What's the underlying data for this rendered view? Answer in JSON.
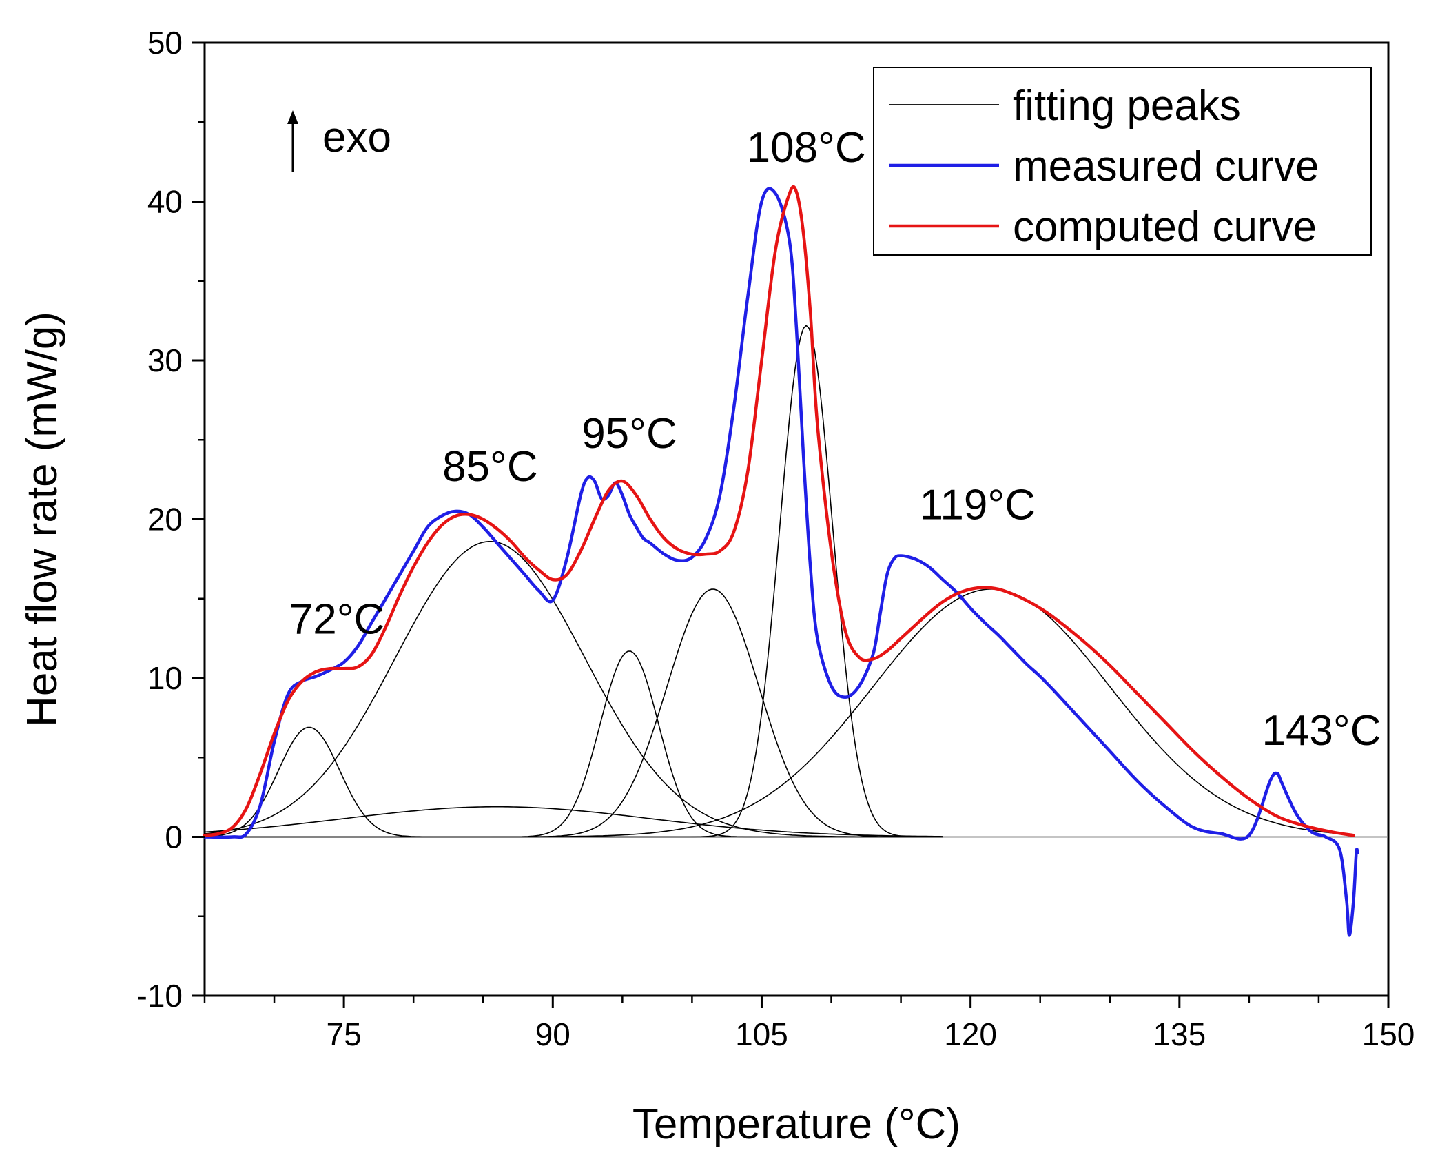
{
  "chart_data": {
    "type": "line",
    "title": "",
    "xlabel": "Temperature (°C)",
    "ylabel": "Heat flow rate (mW/g)",
    "xlim": [
      65,
      150
    ],
    "ylim": [
      -10,
      50
    ],
    "xticks": [
      75,
      90,
      105,
      120,
      135,
      150
    ],
    "yticks": [
      -10,
      0,
      10,
      20,
      30,
      40,
      50
    ],
    "xtick_labels": [
      "75",
      "90",
      "105",
      "120",
      "135",
      "150"
    ],
    "ytick_labels": [
      "-10",
      "0",
      "10",
      "20",
      "30",
      "40",
      "50"
    ],
    "legend_position": "top-right",
    "exo_label": "exo",
    "colors": {
      "measured": "#1f1fe6",
      "computed": "#e61414",
      "fitting": "#000000"
    },
    "legend": [
      {
        "label": "fitting peaks",
        "series": "fitting"
      },
      {
        "label": "measured curve",
        "series": "measured"
      },
      {
        "label": "computed curve",
        "series": "computed"
      }
    ],
    "annotations": [
      {
        "text": "72°C",
        "x": 74.5,
        "y": 12.8
      },
      {
        "text": "85°C",
        "x": 85.5,
        "y": 22.4
      },
      {
        "text": "95°C",
        "x": 95.5,
        "y": 24.5
      },
      {
        "text": "108°C",
        "x": 108.2,
        "y": 42.5
      },
      {
        "text": "119°C",
        "x": 120.5,
        "y": 20.0
      },
      {
        "text": "143°C",
        "x": 145.2,
        "y": 5.8
      }
    ],
    "series": [
      {
        "name": "measured curve",
        "key": "measured",
        "x": [
          65,
          67,
          68,
          69,
          70,
          71,
          72,
          73,
          74,
          75,
          76,
          77,
          78,
          79,
          80,
          81,
          82,
          83,
          84,
          85,
          86,
          87,
          88,
          89,
          90,
          91,
          92,
          92.5,
          93,
          93.5,
          94,
          94.5,
          95,
          95.5,
          96,
          96.5,
          97,
          98,
          99,
          100,
          101,
          102,
          103,
          104,
          105,
          106,
          107,
          107.5,
          108,
          108.5,
          109,
          110,
          111,
          112,
          113,
          113.5,
          114,
          114.5,
          115,
          116,
          117,
          118,
          119,
          120,
          121,
          122,
          123,
          124,
          125,
          126,
          128,
          130,
          132,
          134,
          136,
          138,
          140,
          141.5,
          142,
          142.3,
          142.8,
          143.5,
          144.5,
          145.5,
          146.5,
          147,
          147.2,
          147.5,
          147.7,
          147.8
        ],
        "y": [
          0,
          0,
          0.2,
          2,
          6,
          9,
          9.8,
          10.1,
          10.5,
          11,
          12,
          13.5,
          15,
          16.5,
          18,
          19.5,
          20.2,
          20.5,
          20.3,
          19.5,
          18.5,
          17.5,
          16.5,
          15.5,
          14.9,
          17.5,
          21.5,
          22.6,
          22.4,
          21.3,
          21.5,
          22.3,
          21.5,
          20.3,
          19.5,
          18.8,
          18.5,
          17.8,
          17.4,
          17.6,
          18.8,
          21.5,
          27,
          34,
          40,
          40.5,
          37.5,
          32,
          24,
          17,
          12.5,
          9.5,
          8.8,
          9.5,
          11.5,
          14,
          16.5,
          17.5,
          17.7,
          17.5,
          17,
          16.2,
          15.4,
          14.4,
          13.5,
          12.7,
          11.8,
          10.9,
          10.1,
          9.2,
          7.3,
          5.4,
          3.5,
          1.9,
          0.6,
          0.2,
          0.1,
          3.5,
          4.0,
          3.5,
          2.5,
          1.3,
          0.3,
          0.0,
          -0.8,
          -4,
          -6.2,
          -4,
          -1.0,
          -1.0
        ]
      },
      {
        "name": "computed curve",
        "key": "computed",
        "x": [
          65,
          66,
          67,
          68,
          69,
          70,
          71,
          72,
          73,
          74,
          75,
          76,
          77,
          78,
          79,
          80,
          81,
          82,
          83,
          84,
          85,
          86,
          87,
          88,
          89,
          90,
          91,
          92,
          93,
          94,
          95,
          96,
          97,
          98,
          99,
          100,
          101,
          102,
          103,
          104,
          105,
          106,
          107,
          107.5,
          108,
          108.5,
          109,
          110,
          111,
          112,
          113,
          114,
          115,
          116,
          117,
          118,
          119,
          120,
          121,
          122,
          123,
          124,
          125,
          126,
          128,
          130,
          132,
          134,
          136,
          138,
          140,
          142,
          144,
          146,
          147.5
        ],
        "y": [
          0.1,
          0.2,
          0.6,
          1.8,
          4.0,
          6.5,
          8.6,
          9.8,
          10.4,
          10.6,
          10.6,
          10.7,
          11.5,
          13.2,
          15.2,
          17.0,
          18.5,
          19.6,
          20.2,
          20.3,
          20.0,
          19.4,
          18.6,
          17.6,
          16.8,
          16.2,
          16.5,
          18.0,
          20.0,
          21.8,
          22.4,
          21.5,
          20.0,
          18.8,
          18.1,
          17.8,
          17.8,
          18.0,
          19.2,
          23.0,
          30.0,
          37.0,
          40.5,
          40.6,
          38.0,
          33.0,
          26.0,
          18.0,
          13.0,
          11.3,
          11.2,
          11.7,
          12.5,
          13.3,
          14.1,
          14.8,
          15.3,
          15.6,
          15.7,
          15.6,
          15.3,
          14.9,
          14.4,
          13.8,
          12.4,
          10.8,
          9.0,
          7.2,
          5.4,
          3.8,
          2.4,
          1.3,
          0.7,
          0.3,
          0.1
        ]
      }
    ],
    "fitting_peaks": [
      {
        "center": 72.5,
        "height": 6.9,
        "width": 2.2,
        "xmin": 65,
        "xmax": 118
      },
      {
        "center": 85.5,
        "height": 18.6,
        "width": 6.8,
        "xmin": 65,
        "xmax": 118
      },
      {
        "center": 86.0,
        "height": 1.9,
        "width": 11.0,
        "xmin": 65,
        "xmax": 118
      },
      {
        "center": 95.5,
        "height": 11.7,
        "width": 2.1,
        "xmin": 65,
        "xmax": 118
      },
      {
        "center": 101.5,
        "height": 15.6,
        "width": 3.3,
        "xmin": 65,
        "xmax": 118
      },
      {
        "center": 108.2,
        "height": 32.2,
        "width": 1.9,
        "xmin": 65,
        "xmax": 118
      },
      {
        "center": 121.5,
        "height": 15.6,
        "width": 8.5,
        "xmin": 65,
        "xmax": 147.5
      }
    ]
  }
}
